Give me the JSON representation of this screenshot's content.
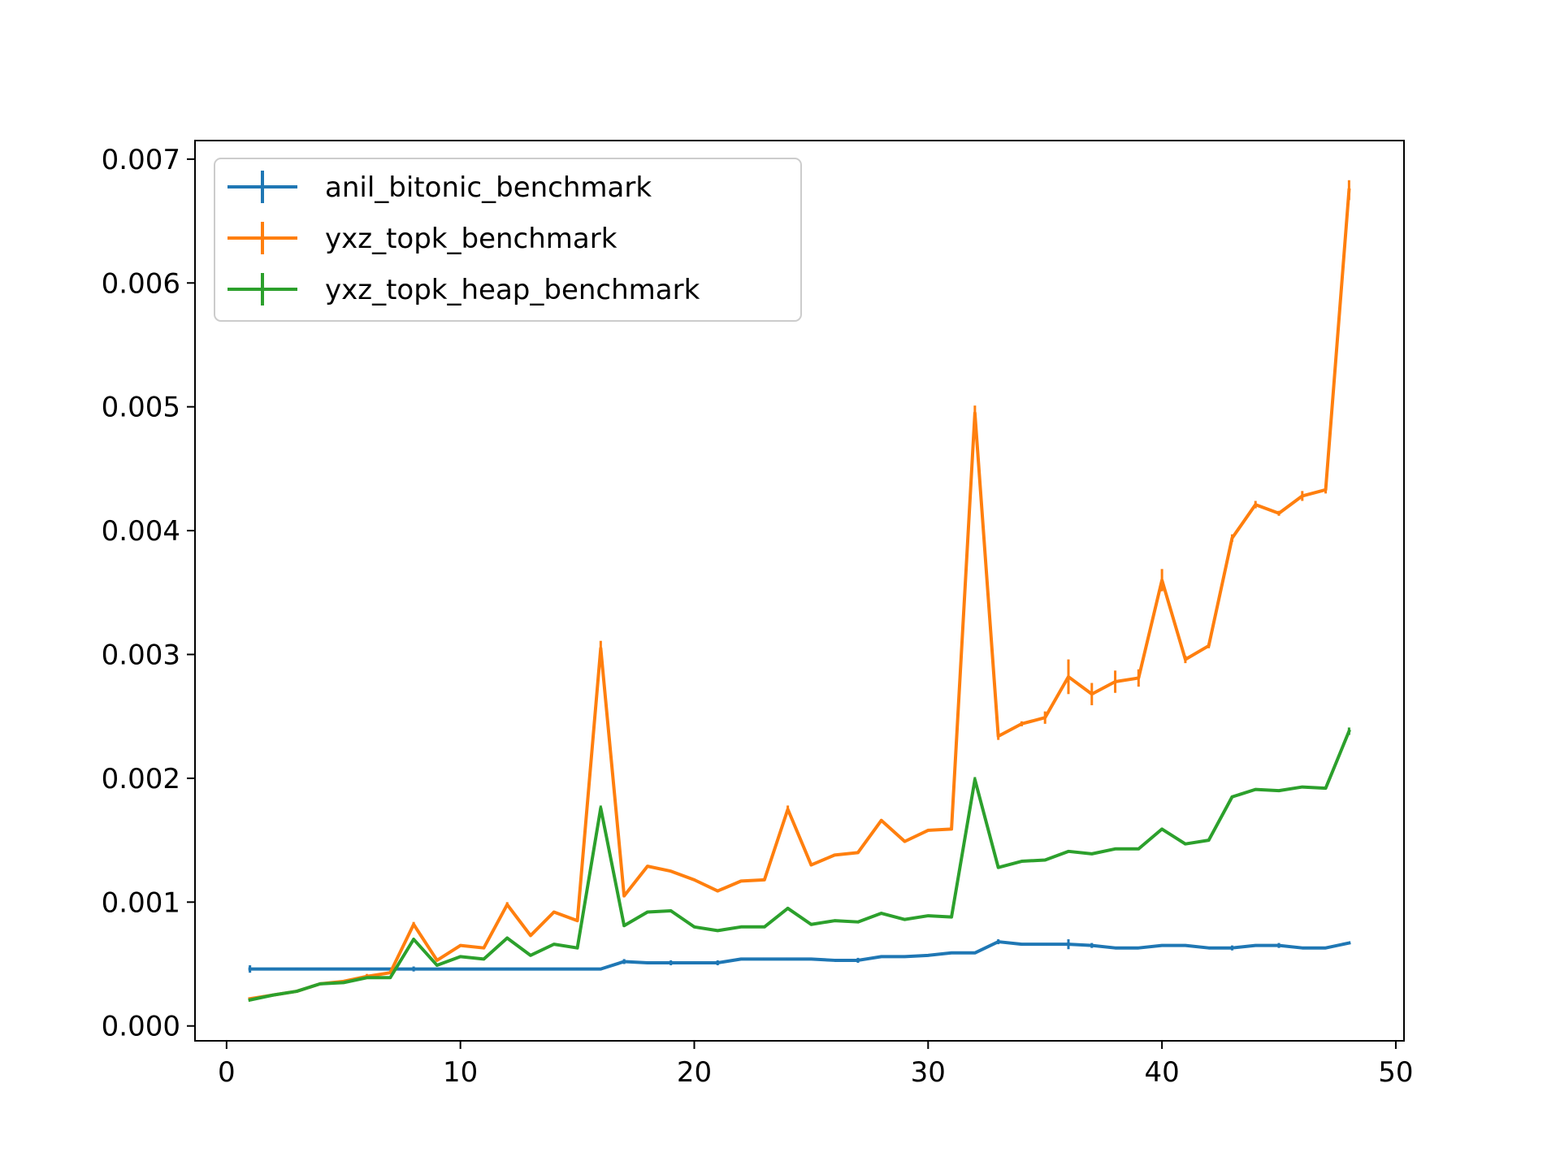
{
  "chart_data": {
    "type": "line",
    "title": "",
    "xlabel": "",
    "ylabel": "",
    "xlim": [
      -1.35,
      50.35
    ],
    "ylim": [
      -0.00012,
      0.00715
    ],
    "xticks": [
      0,
      10,
      20,
      30,
      40,
      50
    ],
    "xtick_labels": [
      "0",
      "10",
      "20",
      "30",
      "40",
      "50"
    ],
    "yticks": [
      0.0,
      0.001,
      0.002,
      0.003,
      0.004,
      0.005,
      0.006,
      0.007
    ],
    "ytick_labels": [
      "0.000",
      "0.001",
      "0.002",
      "0.003",
      "0.004",
      "0.005",
      "0.006",
      "0.007"
    ],
    "grid": false,
    "legend_position": "top-left",
    "x": [
      1,
      2,
      3,
      4,
      5,
      6,
      7,
      8,
      9,
      10,
      11,
      12,
      13,
      14,
      15,
      16,
      17,
      18,
      19,
      20,
      21,
      22,
      23,
      24,
      25,
      26,
      27,
      28,
      29,
      30,
      31,
      32,
      33,
      34,
      35,
      36,
      37,
      38,
      39,
      40,
      41,
      42,
      43,
      44,
      45,
      46,
      47,
      48
    ],
    "series": [
      {
        "name": "anil_bitonic_benchmark",
        "color": "#1f77b4",
        "values": [
          0.00046,
          0.00046,
          0.00046,
          0.00046,
          0.00046,
          0.00046,
          0.00046,
          0.00046,
          0.00046,
          0.00046,
          0.00046,
          0.00046,
          0.00046,
          0.00046,
          0.00046,
          0.00046,
          0.00052,
          0.00051,
          0.00051,
          0.00051,
          0.00051,
          0.00054,
          0.00054,
          0.00054,
          0.00054,
          0.00053,
          0.00053,
          0.00056,
          0.00056,
          0.00057,
          0.00059,
          0.00059,
          0.00068,
          0.00066,
          0.00066,
          0.00066,
          0.00065,
          0.00063,
          0.00063,
          0.00065,
          0.00065,
          0.00063,
          0.00063,
          0.00065,
          0.00065,
          0.00063,
          0.00063,
          0.00067
        ],
        "errors": [
          3e-05,
          1e-05,
          1e-05,
          1e-05,
          1e-05,
          1e-05,
          1e-05,
          2e-05,
          1e-05,
          1e-05,
          1e-05,
          1e-05,
          1e-05,
          1e-05,
          1e-05,
          1e-05,
          2e-05,
          1e-05,
          2e-05,
          1e-05,
          2e-05,
          1e-05,
          1e-05,
          1e-05,
          1e-05,
          1e-05,
          2e-05,
          1e-05,
          1e-05,
          1e-05,
          1e-05,
          1e-05,
          2e-05,
          1e-05,
          1e-05,
          4e-05,
          2e-05,
          1e-05,
          1e-05,
          1e-05,
          1e-05,
          1e-05,
          2e-05,
          1e-05,
          2e-05,
          1e-05,
          1e-05,
          1e-05
        ]
      },
      {
        "name": "yxz_topk_benchmark",
        "color": "#ff7f0e",
        "values": [
          0.00022,
          0.00025,
          0.00028,
          0.00034,
          0.00036,
          0.0004,
          0.00043,
          0.00082,
          0.00053,
          0.00065,
          0.00063,
          0.00098,
          0.00073,
          0.00092,
          0.00085,
          0.00305,
          0.00105,
          0.00129,
          0.00125,
          0.00118,
          0.00109,
          0.00117,
          0.00118,
          0.00175,
          0.0013,
          0.00138,
          0.0014,
          0.00166,
          0.00149,
          0.00158,
          0.00159,
          0.00495,
          0.00234,
          0.00244,
          0.00249,
          0.00282,
          0.00268,
          0.00278,
          0.00281,
          0.0036,
          0.00296,
          0.00307,
          0.00394,
          0.00421,
          0.00414,
          0.00428,
          0.00433,
          0.00675
        ],
        "errors": [
          1e-05,
          1e-05,
          1e-05,
          1e-05,
          1e-05,
          2e-05,
          1e-05,
          2e-05,
          1e-05,
          1e-05,
          1e-05,
          2e-05,
          1e-05,
          1e-05,
          1e-05,
          6e-05,
          1e-05,
          1e-05,
          1e-05,
          1e-05,
          1e-05,
          1e-05,
          1e-05,
          3e-05,
          1e-05,
          1e-05,
          1e-05,
          1e-05,
          1e-05,
          1e-05,
          1e-05,
          6e-05,
          3e-05,
          2e-05,
          5e-05,
          0.00014,
          9e-05,
          9e-05,
          7e-05,
          9e-05,
          3e-05,
          2e-05,
          3e-05,
          3e-05,
          2e-05,
          4e-05,
          3e-05,
          8e-05
        ]
      },
      {
        "name": "yxz_topk_heap_benchmark",
        "color": "#2ca02c",
        "values": [
          0.00021,
          0.00025,
          0.00028,
          0.00034,
          0.00035,
          0.00039,
          0.00039,
          0.0007,
          0.00049,
          0.00056,
          0.00054,
          0.00071,
          0.00057,
          0.00066,
          0.00063,
          0.00176,
          0.00081,
          0.00092,
          0.00093,
          0.0008,
          0.00077,
          0.0008,
          0.0008,
          0.00095,
          0.00082,
          0.00085,
          0.00084,
          0.00091,
          0.00086,
          0.00089,
          0.00088,
          0.00199,
          0.00128,
          0.00133,
          0.00134,
          0.00141,
          0.00139,
          0.00143,
          0.00143,
          0.00159,
          0.00147,
          0.0015,
          0.00185,
          0.00191,
          0.0019,
          0.00193,
          0.00192,
          0.00238
        ],
        "errors": [
          1e-05,
          1e-05,
          1e-05,
          1e-05,
          1e-05,
          1e-05,
          1e-05,
          1e-05,
          1e-05,
          1e-05,
          1e-05,
          1e-05,
          1e-05,
          1e-05,
          1e-05,
          2e-05,
          1e-05,
          1e-05,
          1e-05,
          1e-05,
          1e-05,
          1e-05,
          1e-05,
          1e-05,
          1e-05,
          1e-05,
          1e-05,
          1e-05,
          1e-05,
          1e-05,
          1e-05,
          2e-05,
          1e-05,
          1e-05,
          1e-05,
          1e-05,
          1e-05,
          1e-05,
          1e-05,
          1e-05,
          1e-05,
          1e-05,
          1e-05,
          1e-05,
          1e-05,
          1e-05,
          1e-05,
          3e-05
        ]
      }
    ]
  }
}
